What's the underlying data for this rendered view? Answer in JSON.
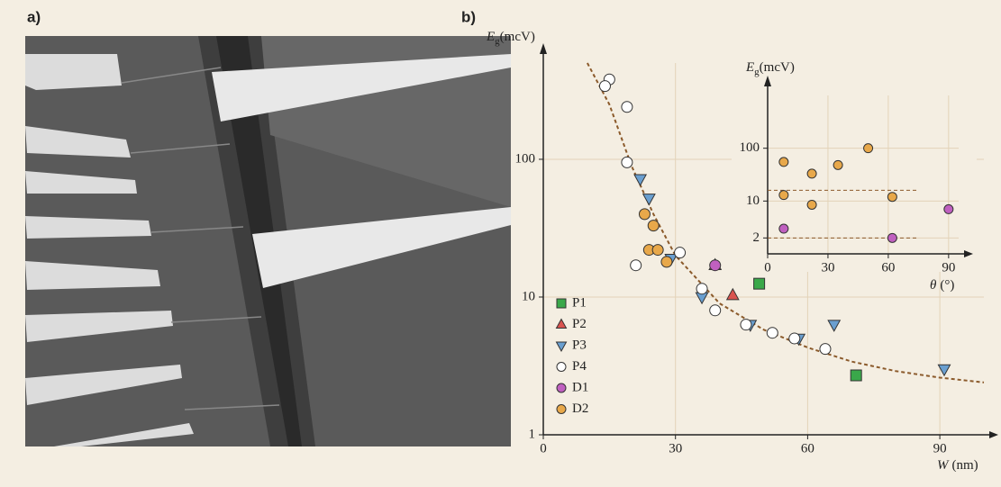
{
  "panel_labels": [
    "a)",
    "b)"
  ],
  "chart_data": [
    {
      "type": "scatter",
      "ylabel": {
        "symbol": "E",
        "subscript": "g",
        "unit": "(mcV)"
      },
      "xlabel": {
        "symbol": "W",
        "unit": "(nm)"
      },
      "xlim": [
        0,
        100
      ],
      "xticks": [
        0,
        30,
        60,
        90
      ],
      "ylim": [
        1,
        500
      ],
      "yticks": [
        1,
        10,
        100
      ],
      "log_y": true,
      "grid": true,
      "legend": "lower left",
      "series": [
        {
          "name": "P1",
          "color": "#3aa84a",
          "marker": "square",
          "x": [
            49,
            71
          ],
          "values": [
            12.5,
            2.7
          ]
        },
        {
          "name": "P2",
          "color": "#d9534f",
          "marker": "triangle-up",
          "x": [
            39,
            43
          ],
          "values": [
            17,
            10.3
          ]
        },
        {
          "name": "P3",
          "color": "#6a9fd0",
          "marker": "triangle-down",
          "x": [
            22,
            24,
            29,
            36,
            47,
            58,
            66,
            91
          ],
          "values": [
            72,
            52,
            19,
            10,
            6.3,
            5,
            6.3,
            3
          ]
        },
        {
          "name": "P4",
          "color": "#ffffff",
          "marker": "circle",
          "x": [
            15,
            14,
            19,
            19,
            21,
            31,
            36,
            39,
            46,
            52,
            57,
            64
          ],
          "values": [
            380,
            340,
            240,
            95,
            17,
            21,
            11.5,
            8,
            6.3,
            5.5,
            5,
            4.2
          ]
        },
        {
          "name": "D1",
          "color": "#c060c0",
          "marker": "circle",
          "x": [
            39
          ],
          "values": [
            17
          ]
        },
        {
          "name": "D2",
          "color": "#e8a84a",
          "marker": "circle",
          "x": [
            23,
            25,
            24,
            26,
            28
          ],
          "values": [
            40,
            33,
            22,
            22,
            18
          ]
        }
      ],
      "fit": {
        "color": "#8b5a2b",
        "x": [
          10,
          15,
          20,
          25,
          30,
          40,
          50,
          60,
          70,
          80,
          90,
          100
        ],
        "values": [
          500,
          250,
          90,
          40,
          20,
          9,
          5.8,
          4.3,
          3.4,
          2.9,
          2.6,
          2.4
        ]
      }
    },
    {
      "type": "scatter",
      "ylabel": {
        "symbol": "E",
        "subscript": "g",
        "unit": "(mcV)"
      },
      "xlabel": {
        "symbol": "θ",
        "unit": "(°)"
      },
      "xlim": [
        0,
        95
      ],
      "xticks": [
        0,
        30,
        60,
        90
      ],
      "ylim": [
        1,
        1000
      ],
      "yticks": [
        2,
        10,
        100
      ],
      "log_y": true,
      "grid": true,
      "series": [
        {
          "color": "#e8a84a",
          "marker": "circle",
          "x": [
            8,
            8,
            22,
            22,
            35,
            50,
            62
          ],
          "values": [
            55,
            13,
            33,
            8.5,
            48,
            100,
            12
          ]
        },
        {
          "color": "#c060c0",
          "marker": "circle",
          "x": [
            8,
            62,
            90
          ],
          "values": [
            3,
            2,
            7
          ]
        }
      ],
      "hlines": {
        "color": "#8b5a2b",
        "xlim": [
          0,
          75
        ],
        "values": [
          16,
          2
        ]
      }
    }
  ]
}
